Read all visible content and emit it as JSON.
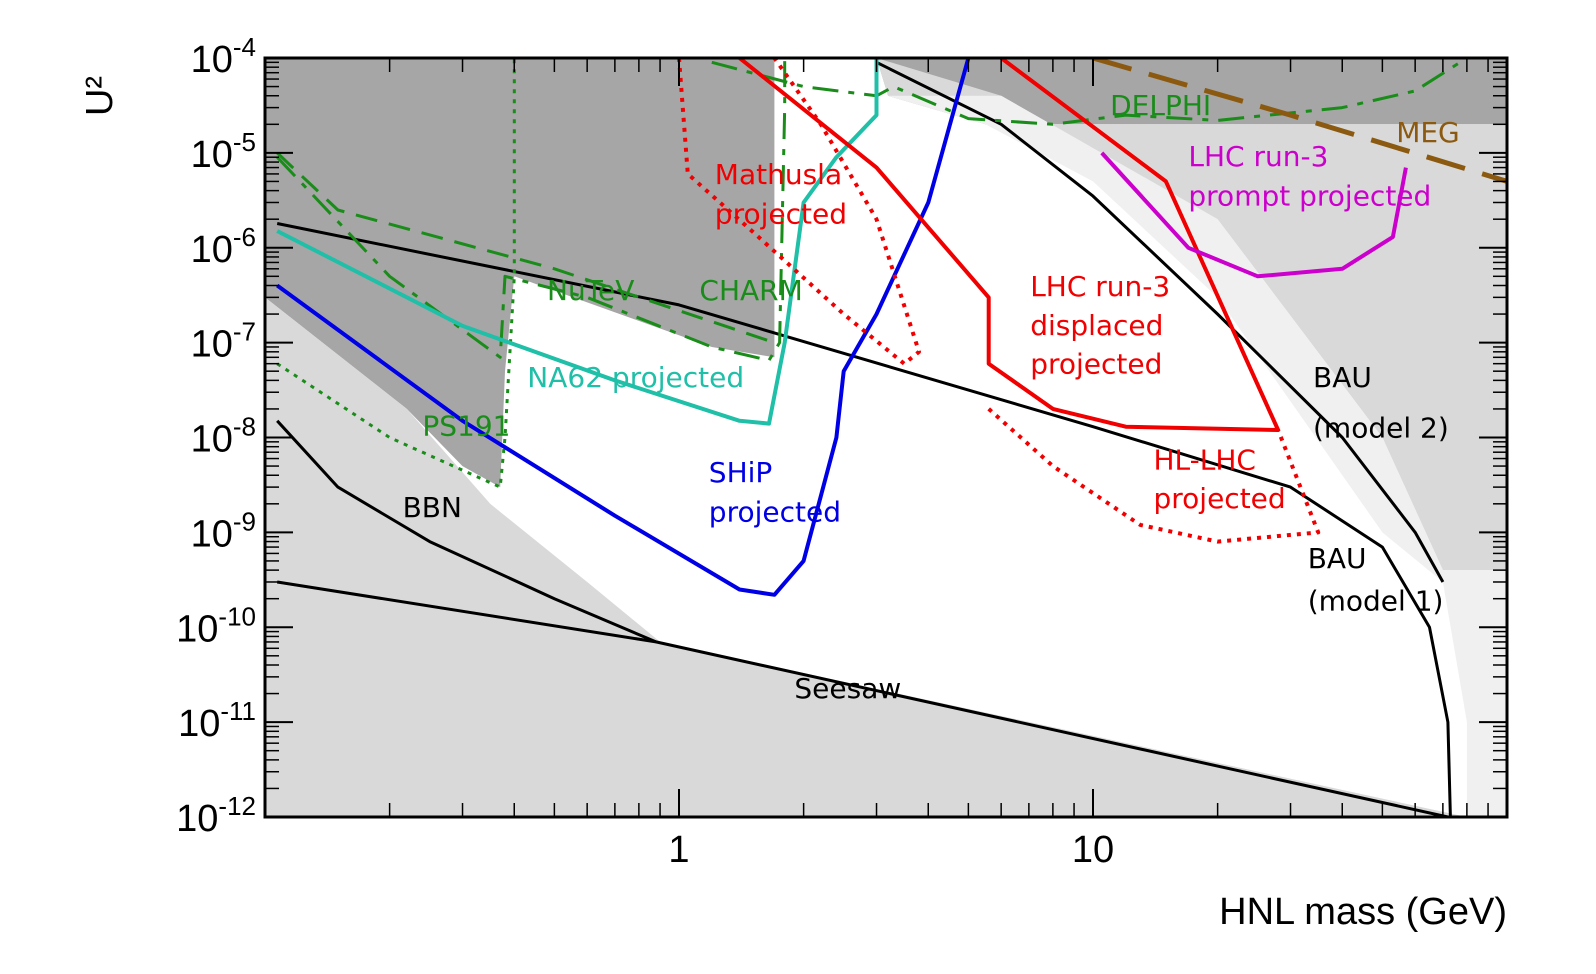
{
  "chart_data": {
    "type": "line",
    "title": "",
    "xlabel": "HNL mass (GeV)",
    "ylabel": "U²",
    "xscale": "log",
    "yscale": "log",
    "xlim": [
      0.1,
      100
    ],
    "ylim": [
      1e-12,
      0.0001
    ],
    "x_ticks": [
      {
        "value": 1,
        "label": "1"
      },
      {
        "value": 10,
        "label": "10"
      }
    ],
    "y_ticks": [
      {
        "value": 0.0001,
        "base": "10",
        "exp": "-4"
      },
      {
        "value": 1e-05,
        "base": "10",
        "exp": "-5"
      },
      {
        "value": 1e-06,
        "base": "10",
        "exp": "-6"
      },
      {
        "value": 1e-07,
        "base": "10",
        "exp": "-7"
      },
      {
        "value": 1e-08,
        "base": "10",
        "exp": "-8"
      },
      {
        "value": 1e-09,
        "base": "10",
        "exp": "-9"
      },
      {
        "value": 1e-10,
        "base": "10",
        "exp": "-10"
      },
      {
        "value": 1e-11,
        "base": "10",
        "exp": "-11"
      },
      {
        "value": 1e-12,
        "base": "10",
        "exp": "-12"
      }
    ],
    "regions": [
      {
        "name": "excluded-experiments",
        "color": "#a6a6a6",
        "points": [
          [
            0.1,
            0.0001
          ],
          [
            3.0,
            0.0001
          ],
          [
            3.2,
            4e-05
          ],
          [
            5.5,
            2e-05
          ],
          [
            10,
            2e-05
          ],
          [
            30,
            2e-05
          ],
          [
            60,
            2e-05
          ],
          [
            100,
            2e-05
          ],
          [
            100,
            0.0001
          ]
        ]
      },
      {
        "name": "excluded-low-mass",
        "color": "#a6a6a6",
        "points": [
          [
            0.1,
            0.0001
          ],
          [
            1.7,
            0.0001
          ],
          [
            1.7,
            7e-08
          ],
          [
            1.2,
            9e-08
          ],
          [
            0.4,
            5e-07
          ],
          [
            0.38,
            5e-08
          ],
          [
            0.37,
            3e-09
          ],
          [
            0.3,
            5e-09
          ],
          [
            0.22,
            2e-08
          ],
          [
            0.1,
            3e-07
          ]
        ]
      },
      {
        "name": "bbn-excluded",
        "color": "#d9d9d9",
        "points": [
          [
            0.1,
            3e-07
          ],
          [
            0.22,
            2e-08
          ],
          [
            0.35,
            2e-09
          ],
          [
            0.6,
            3e-10
          ],
          [
            0.9,
            7e-11
          ],
          [
            0.1,
            3e-10
          ]
        ]
      },
      {
        "name": "seesaw-excluded",
        "color": "#d9d9d9",
        "points": [
          [
            0.1,
            3e-10
          ],
          [
            0.9,
            7e-11
          ],
          [
            80,
            1e-12
          ],
          [
            0.1,
            1e-12
          ]
        ]
      },
      {
        "name": "bau-model2-excluded",
        "color": "#d9d9d9",
        "points": [
          [
            3.0,
            0.0001
          ],
          [
            6,
            4e-05
          ],
          [
            20,
            2e-06
          ],
          [
            50,
            1e-08
          ],
          [
            70,
            4e-10
          ],
          [
            100,
            4e-10
          ],
          [
            100,
            2e-05
          ],
          [
            30,
            2e-05
          ],
          [
            5.5,
            2e-05
          ],
          [
            3.2,
            4e-05
          ]
        ]
      },
      {
        "name": "bau-model1-region",
        "color": "#f0f0f0",
        "points": [
          [
            3.2,
            4e-05
          ],
          [
            5.5,
            2e-05
          ],
          [
            10,
            5e-06
          ],
          [
            20,
            3e-07
          ],
          [
            50,
            1e-09
          ],
          [
            70,
            3e-10
          ],
          [
            80,
            1e-11
          ],
          [
            80,
            1e-12
          ],
          [
            100,
            1e-12
          ],
          [
            100,
            4e-10
          ],
          [
            70,
            4e-10
          ],
          [
            50,
            1e-08
          ],
          [
            20,
            2e-06
          ],
          [
            6,
            4e-05
          ]
        ]
      }
    ],
    "series": [
      {
        "name": "Seesaw",
        "color": "#000000",
        "style": "solid",
        "width": 3,
        "points": [
          [
            0.107,
            3e-10
          ],
          [
            0.88,
            7e-11
          ],
          [
            72,
            1e-12
          ]
        ]
      },
      {
        "name": "BBN",
        "color": "#000000",
        "style": "solid",
        "width": 3,
        "points": [
          [
            0.107,
            1.5e-08
          ],
          [
            0.15,
            3e-09
          ],
          [
            0.25,
            8e-10
          ],
          [
            0.5,
            2e-10
          ],
          [
            0.88,
            7e-11
          ]
        ]
      },
      {
        "name": "BAU (model 1)",
        "color": "#000000",
        "style": "solid",
        "width": 3,
        "points": [
          [
            0.107,
            1.8e-06
          ],
          [
            1,
            2.5e-07
          ],
          [
            10,
            1.3e-08
          ],
          [
            30,
            3e-09
          ],
          [
            50,
            7e-10
          ],
          [
            65,
            1e-10
          ],
          [
            72,
            1e-11
          ],
          [
            73,
            1e-12
          ]
        ]
      },
      {
        "name": "BAU (model 2)",
        "color": "#000000",
        "style": "solid",
        "width": 3,
        "points": [
          [
            3,
            9e-05
          ],
          [
            6,
            2e-05
          ],
          [
            10,
            3.5e-06
          ],
          [
            20,
            2e-07
          ],
          [
            40,
            1e-08
          ],
          [
            60,
            1e-09
          ],
          [
            70,
            3e-10
          ]
        ]
      },
      {
        "name": "DELPHI",
        "color": "#1a8c1a",
        "style": "dashdot",
        "width": 3,
        "points": [
          [
            1.2,
            9e-05
          ],
          [
            2,
            5e-05
          ],
          [
            3,
            4e-05
          ],
          [
            3.3,
            5e-05
          ],
          [
            5,
            2.3e-05
          ],
          [
            8,
            2e-05
          ],
          [
            12,
            2.5e-05
          ],
          [
            20,
            2.2e-05
          ],
          [
            40,
            3e-05
          ],
          [
            60,
            4.5e-05
          ],
          [
            80,
            0.0001
          ]
        ]
      },
      {
        "name": "CHARM",
        "color": "#1a8c1a",
        "style": "dashed",
        "width": 3,
        "points": [
          [
            0.107,
            1e-05
          ],
          [
            0.15,
            2.5e-06
          ],
          [
            0.5,
            6e-07
          ],
          [
            1.7,
            1e-07
          ]
        ]
      },
      {
        "name": "NuTeV",
        "color": "#1a8c1a",
        "style": "dashdot",
        "width": 3,
        "points": [
          [
            0.107,
            9e-06
          ],
          [
            0.2,
            5e-07
          ],
          [
            0.37,
            7e-08
          ],
          [
            0.38,
            5e-07
          ],
          [
            0.6,
            3e-07
          ],
          [
            1.2,
            9e-08
          ],
          [
            1.65,
            6.5e-08
          ],
          [
            1.75,
            1e-07
          ],
          [
            1.8,
            3e-05
          ],
          [
            1.8,
            0.0001
          ]
        ]
      },
      {
        "name": "PS191",
        "color": "#1a8c1a",
        "style": "dotted",
        "width": 3,
        "points": [
          [
            0.107,
            6e-08
          ],
          [
            0.2,
            1e-08
          ],
          [
            0.37,
            3e-09
          ],
          [
            0.38,
            1e-08
          ],
          [
            0.4,
            5e-07
          ],
          [
            0.4,
            0.0001
          ]
        ]
      },
      {
        "name": "NA62 projected",
        "color": "#1fbfa8",
        "style": "solid",
        "width": 4,
        "points": [
          [
            0.107,
            1.5e-06
          ],
          [
            0.3,
            1.5e-07
          ],
          [
            0.7,
            4e-08
          ],
          [
            1.4,
            1.5e-08
          ],
          [
            1.65,
            1.4e-08
          ],
          [
            1.8,
            1e-07
          ],
          [
            2,
            3e-06
          ],
          [
            2.4,
            9e-06
          ],
          [
            3,
            2.5e-05
          ],
          [
            3,
            0.0001
          ]
        ]
      },
      {
        "name": "SHiP projected",
        "color": "#0000e6",
        "style": "solid",
        "width": 4,
        "points": [
          [
            0.107,
            4e-07
          ],
          [
            0.3,
            1.5e-08
          ],
          [
            0.7,
            1.5e-09
          ],
          [
            1.4,
            2.5e-10
          ],
          [
            1.7,
            2.2e-10
          ],
          [
            2,
            5e-10
          ],
          [
            2.4,
            1e-08
          ],
          [
            2.5,
            5e-08
          ],
          [
            3,
            2e-07
          ],
          [
            4,
            3e-06
          ],
          [
            5,
            0.0001
          ]
        ]
      },
      {
        "name": "Mathusla projected",
        "color": "#f00000",
        "style": "dotted",
        "width": 4,
        "points": [
          [
            1,
            0.0001
          ],
          [
            1.05,
            6e-06
          ],
          [
            1.5,
            1.5e-06
          ],
          [
            2.5,
            2e-07
          ],
          [
            3.5,
            6e-08
          ],
          [
            3.8,
            8e-08
          ],
          [
            3,
            2e-06
          ],
          [
            2.2,
            2e-05
          ],
          [
            1.7,
            0.0001
          ]
        ]
      },
      {
        "name": "LHC run-3 displaced projected",
        "color": "#f00000",
        "style": "solid",
        "width": 4,
        "points": [
          [
            1.4,
            0.0001
          ],
          [
            3,
            7e-06
          ],
          [
            5.6,
            3e-07
          ],
          [
            5.6,
            6e-08
          ],
          [
            8,
            2e-08
          ],
          [
            12,
            1.3e-08
          ],
          [
            28,
            1.2e-08
          ],
          [
            15,
            5e-06
          ],
          [
            6,
            0.0001
          ]
        ]
      },
      {
        "name": "HL-LHC projected",
        "color": "#f00000",
        "style": "dotted",
        "width": 4,
        "points": [
          [
            5.6,
            2e-08
          ],
          [
            8,
            5e-09
          ],
          [
            13,
            1.2e-09
          ],
          [
            20,
            8e-10
          ],
          [
            35,
            1e-09
          ],
          [
            28,
            1.2e-08
          ]
        ]
      },
      {
        "name": "LHC run-3 prompt projected",
        "color": "#cc00cc",
        "style": "solid",
        "width": 4,
        "points": [
          [
            10.5,
            1e-05
          ],
          [
            17,
            1e-06
          ],
          [
            25,
            5e-07
          ],
          [
            40,
            6e-07
          ],
          [
            53,
            1.3e-06
          ],
          [
            57,
            7e-06
          ]
        ]
      },
      {
        "name": "MEG",
        "color": "#8b5a10",
        "style": "longdash",
        "width": 5,
        "points": [
          [
            10,
            0.0001
          ],
          [
            30,
            2.5e-05
          ],
          [
            100,
            5e-06
          ]
        ]
      }
    ],
    "annotations": [
      {
        "text": "DELPHI",
        "x": 11,
        "y": 2.5e-05,
        "color": "#1a8c1a"
      },
      {
        "text": "MEG",
        "x": 54,
        "y": 1.3e-05,
        "color": "#8b5a10"
      },
      {
        "text": "Mathusla",
        "x": 1.22,
        "y": 4.7e-06,
        "color": "#f00000"
      },
      {
        "text": "projected",
        "x": 1.22,
        "y": 1.8e-06,
        "color": "#f00000"
      },
      {
        "text": "LHC run-3",
        "x": 17,
        "y": 7.3e-06,
        "color": "#cc00cc"
      },
      {
        "text": "prompt projected",
        "x": 17,
        "y": 2.8e-06,
        "color": "#cc00cc"
      },
      {
        "text": "NuTeV",
        "x": 0.48,
        "y": 2.8e-07,
        "color": "#1a8c1a"
      },
      {
        "text": "CHARM",
        "x": 1.12,
        "y": 2.8e-07,
        "color": "#1a8c1a"
      },
      {
        "text": "LHC run-3",
        "x": 7.05,
        "y": 3.1e-07,
        "color": "#f00000"
      },
      {
        "text": "displaced",
        "x": 7.05,
        "y": 1.2e-07,
        "color": "#f00000"
      },
      {
        "text": "projected",
        "x": 7.05,
        "y": 4.7e-08,
        "color": "#f00000"
      },
      {
        "text": "NA62 projected",
        "x": 0.43,
        "y": 3.4e-08,
        "color": "#1fbfa8"
      },
      {
        "text": "PS191",
        "x": 0.24,
        "y": 1.05e-08,
        "color": "#1a8c1a"
      },
      {
        "text": "SHiP",
        "x": 1.18,
        "y": 3.4e-09,
        "color": "#0000e6"
      },
      {
        "text": "projected",
        "x": 1.18,
        "y": 1.3e-09,
        "color": "#0000e6"
      },
      {
        "text": "BAU",
        "x": 34,
        "y": 3.4e-08,
        "color": "#000000"
      },
      {
        "text": "(model 2)",
        "x": 34,
        "y": 1e-08,
        "color": "#000000"
      },
      {
        "text": "HL-LHC",
        "x": 14,
        "y": 4.6e-09,
        "color": "#f00000"
      },
      {
        "text": "projected",
        "x": 14,
        "y": 1.8e-09,
        "color": "#f00000"
      },
      {
        "text": "BBN",
        "x": 0.215,
        "y": 1.45e-09,
        "color": "#000000"
      },
      {
        "text": "BAU",
        "x": 33,
        "y": 4.2e-10,
        "color": "#000000"
      },
      {
        "text": "(model 1)",
        "x": 33,
        "y": 1.5e-10,
        "color": "#000000"
      },
      {
        "text": "Seesaw",
        "x": 1.9,
        "y": 1.8e-11,
        "color": "#000000"
      }
    ]
  }
}
